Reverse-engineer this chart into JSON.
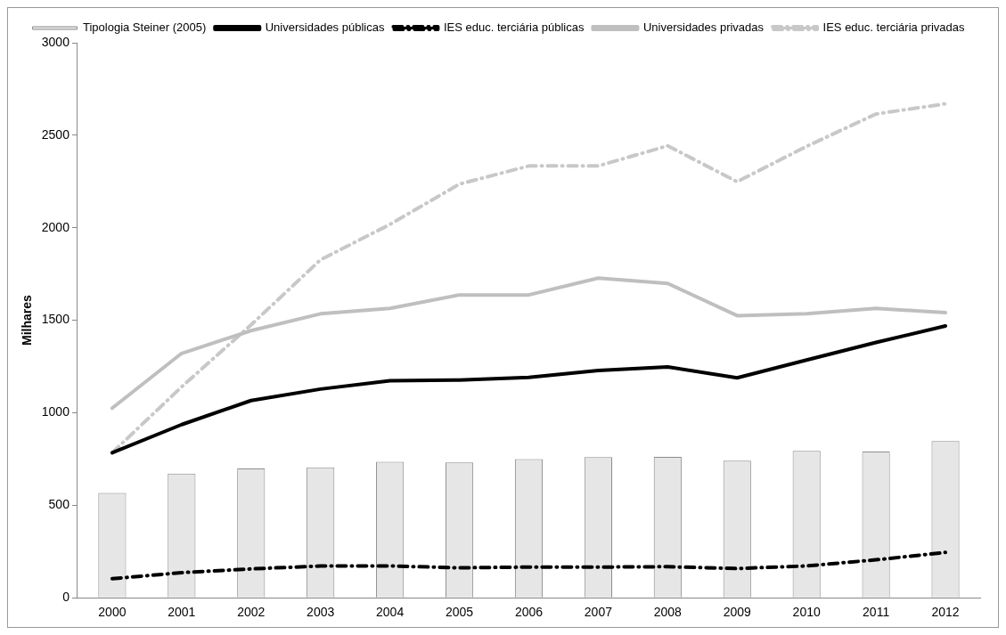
{
  "chart_data": {
    "type": "bar",
    "ylabel": "Milhares",
    "categories": [
      "2000",
      "2001",
      "2002",
      "2003",
      "2004",
      "2005",
      "2006",
      "2007",
      "2008",
      "2009",
      "2010",
      "2011",
      "2012"
    ],
    "series": [
      {
        "name": "Tipologia Steiner (2005)",
        "color": "#e6e6e6",
        "values": [
          567,
          671,
          699,
          705,
          735,
          731,
          749,
          760,
          762,
          741,
          794,
          790,
          847
        ]
      },
      {
        "name": "Universidades públicas",
        "type": "line",
        "color": "#000000",
        "line_style": "solid",
        "values": [
          784,
          936,
          1066,
          1128,
          1173,
          1177,
          1191,
          1228,
          1248,
          1189,
          1285,
          1380,
          1469
        ]
      },
      {
        "name": "IES educ. terciária públicas",
        "type": "line",
        "color": "#000000",
        "line_style": "dashed",
        "values": [
          103,
          136,
          156,
          172,
          172,
          162,
          166,
          166,
          168,
          158,
          172,
          205,
          245
        ]
      },
      {
        "name": "Universidades privadas",
        "type": "line",
        "color": "#bfbfbf",
        "line_style": "solid",
        "values": [
          1025,
          1321,
          1444,
          1535,
          1564,
          1637,
          1637,
          1728,
          1699,
          1525,
          1535,
          1564,
          1541
        ]
      },
      {
        "name": "IES educ. terciária privadas",
        "type": "line",
        "color": "#c8c8c8",
        "line_style": "dashed",
        "values": [
          784,
          1140,
          1475,
          1827,
          2018,
          2236,
          2334,
          2334,
          2443,
          2249,
          2440,
          2615,
          2670
        ]
      }
    ],
    "ylim": [
      0,
      3000
    ],
    "yticks": [
      0,
      500,
      1000,
      1500,
      2000,
      2500,
      3000
    ],
    "grid": false,
    "legend": "top",
    "marker": "none"
  }
}
